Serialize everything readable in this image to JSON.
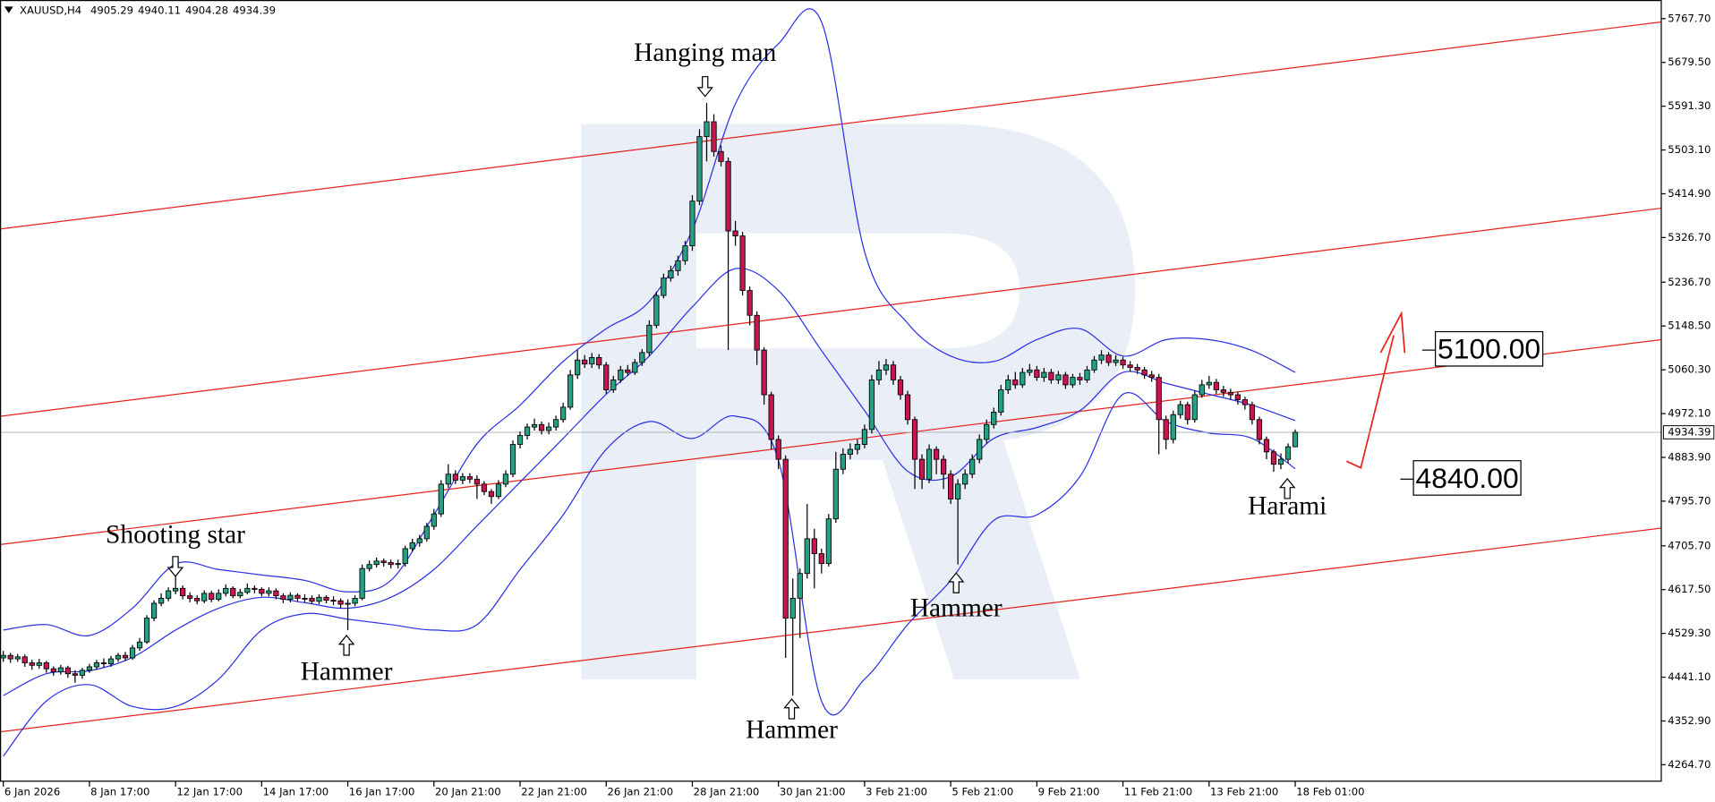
{
  "chart_data": {
    "type": "candlestick",
    "symbol": "XAUUSD,H4",
    "categories": [
      "6 Jan 2026",
      null,
      null,
      null,
      null,
      null,
      null,
      null,
      null,
      null,
      null,
      null,
      "8 Jan 17:00",
      null,
      null,
      null,
      null,
      null,
      null,
      null,
      null,
      null,
      null,
      null,
      "12 Jan 17:00",
      null,
      null,
      null,
      null,
      null,
      null,
      null,
      null,
      null,
      null,
      null,
      "14 Jan 17:00",
      null,
      null,
      null,
      null,
      null,
      null,
      null,
      null,
      null,
      null,
      null,
      "16 Jan 17:00",
      null,
      null,
      null,
      null,
      null,
      null,
      null,
      null,
      null,
      null,
      null,
      "20 Jan 21:00",
      null,
      null,
      null,
      null,
      null,
      null,
      null,
      null,
      null,
      null,
      null,
      "22 Jan 21:00",
      null,
      null,
      null,
      null,
      null,
      null,
      null,
      null,
      null,
      null,
      null,
      "26 Jan 21:00",
      null,
      null,
      null,
      null,
      null,
      null,
      null,
      null,
      null,
      null,
      null,
      "28 Jan 21:00",
      null,
      null,
      null,
      null,
      null,
      null,
      null,
      null,
      null,
      null,
      null,
      "30 Jan 21:00",
      null,
      null,
      null,
      null,
      null,
      null,
      null,
      null,
      null,
      null,
      null,
      "3 Feb 21:00",
      null,
      null,
      null,
      null,
      null,
      null,
      null,
      null,
      null,
      null,
      null,
      "5 Feb 21:00",
      null,
      null,
      null,
      null,
      null,
      null,
      null,
      null,
      null,
      null,
      null,
      "9 Feb 21:00",
      null,
      null,
      null,
      null,
      null,
      null,
      null,
      null,
      null,
      null,
      null,
      "11 Feb 21:00",
      null,
      null,
      null,
      null,
      null,
      null,
      null,
      null,
      null,
      null,
      null,
      "13 Feb 21:00",
      null,
      null,
      null,
      null,
      null,
      null,
      null,
      null,
      null,
      null,
      null,
      "18 Feb 01:00"
    ],
    "open": [
      4480,
      4485,
      4478,
      4482,
      4470,
      4465,
      4470,
      4458,
      4452,
      4460,
      4448,
      4445,
      4455,
      4462,
      4470,
      4468,
      4478,
      4485,
      4480,
      4500,
      4512,
      4560,
      4590,
      4600,
      4615,
      4620,
      4605,
      4600,
      4595,
      4610,
      4598,
      4610,
      4620,
      4605,
      4612,
      4620,
      4618,
      4610,
      4615,
      4605,
      4598,
      4606,
      4600,
      4600,
      4594,
      4602,
      4596,
      4595,
      4588,
      4590,
      4600,
      4660,
      4668,
      4675,
      4672,
      4668,
      4670,
      4700,
      4712,
      4720,
      4745,
      4770,
      4830,
      4850,
      4838,
      4845,
      4840,
      4830,
      4815,
      4805,
      4830,
      4850,
      4910,
      4928,
      4945,
      4950,
      4938,
      4945,
      4960,
      4985,
      5050,
      5080,
      5072,
      5085,
      5070,
      5020,
      5040,
      5060,
      5055,
      5075,
      5095,
      5150,
      5210,
      5245,
      5260,
      5280,
      5310,
      5400,
      5530,
      5560,
      5500,
      5480,
      5340,
      5330,
      5220,
      5170,
      5100,
      5010,
      4920,
      4880,
      4560,
      4600,
      4650,
      4720,
      4690,
      4670,
      4760,
      4860,
      4890,
      4900,
      4910,
      4940,
      5040,
      5060,
      5070,
      5040,
      5010,
      4960,
      4880,
      4840,
      4900,
      4880,
      4850,
      4800,
      4830,
      4850,
      4880,
      4920,
      4950,
      4975,
      5020,
      5040,
      5030,
      5055,
      5060,
      5045,
      5055,
      5040,
      5050,
      5030,
      5045,
      5040,
      5060,
      5080,
      5090,
      5075,
      5080,
      5070,
      5065,
      5060,
      5050,
      5045,
      4960,
      4920,
      4970,
      4990,
      4960,
      5010,
      5030,
      5035,
      5020,
      5015,
      5010,
      5000,
      4990,
      4960,
      4920,
      4895,
      4870,
      4880,
      4905.29
    ],
    "high": [
      4494,
      4490,
      4488,
      4487,
      4476,
      4478,
      4474,
      4463,
      4466,
      4464,
      4455,
      4460,
      4468,
      4476,
      4479,
      4484,
      4490,
      4492,
      4506,
      4520,
      4566,
      4596,
      4610,
      4622,
      4648,
      4626,
      4612,
      4606,
      4616,
      4615,
      4618,
      4628,
      4624,
      4619,
      4630,
      4626,
      4622,
      4622,
      4620,
      4610,
      4612,
      4610,
      4608,
      4606,
      4608,
      4606,
      4604,
      4600,
      4598,
      4606,
      4668,
      4676,
      4682,
      4680,
      4678,
      4678,
      4706,
      4720,
      4728,
      4752,
      4780,
      4838,
      4870,
      4858,
      4852,
      4852,
      4848,
      4836,
      4820,
      4838,
      4858,
      4918,
      4936,
      4952,
      4962,
      4956,
      4954,
      4968,
      4994,
      5060,
      5100,
      5090,
      5094,
      5092,
      5076,
      5048,
      5068,
      5070,
      5082,
      5102,
      5160,
      5218,
      5254,
      5270,
      5290,
      5320,
      5412,
      5545,
      5598,
      5575,
      5512,
      5488,
      5360,
      5338,
      5228,
      5178,
      5106,
      5016,
      4928,
      4888,
      4640,
      4660,
      4790,
      4740,
      4700,
      4770,
      4895,
      4902,
      4912,
      4920,
      4950,
      5050,
      5078,
      5082,
      5078,
      5048,
      5018,
      4966,
      4890,
      4910,
      4906,
      4888,
      4858,
      4840,
      4860,
      4890,
      4930,
      4960,
      4984,
      5030,
      5050,
      5056,
      5064,
      5072,
      5068,
      5064,
      5062,
      5058,
      5056,
      5052,
      5054,
      5068,
      5088,
      5100,
      5096,
      5090,
      5086,
      5078,
      5072,
      5066,
      5058,
      5052,
      4968,
      4978,
      4998,
      4996,
      5018,
      5040,
      5048,
      5042,
      5028,
      5022,
      5016,
      5006,
      4996,
      4966,
      4926,
      4900,
      4892,
      4912,
      4940.11
    ],
    "low": [
      4472,
      4470,
      4472,
      4462,
      4456,
      4458,
      4450,
      4444,
      4446,
      4440,
      4430,
      4438,
      4450,
      4456,
      4461,
      4462,
      4472,
      4474,
      4476,
      4494,
      4508,
      4554,
      4584,
      4594,
      4608,
      4598,
      4592,
      4588,
      4590,
      4592,
      4594,
      4604,
      4600,
      4600,
      4608,
      4610,
      4604,
      4604,
      4598,
      4590,
      4592,
      4594,
      4592,
      4588,
      4588,
      4590,
      4586,
      4580,
      4536,
      4584,
      4596,
      4654,
      4662,
      4664,
      4660,
      4660,
      4664,
      4694,
      4704,
      4714,
      4738,
      4764,
      4822,
      4830,
      4830,
      4832,
      4800,
      4808,
      4790,
      4800,
      4824,
      4844,
      4902,
      4920,
      4938,
      4930,
      4930,
      4938,
      4954,
      4980,
      5042,
      5064,
      5064,
      5062,
      5012,
      5014,
      5034,
      5048,
      5050,
      5068,
      5088,
      5144,
      5204,
      5238,
      5250,
      5272,
      5300,
      5392,
      5480,
      5490,
      5470,
      5100,
      5310,
      5210,
      5150,
      5070,
      4990,
      4900,
      4860,
      4480,
      4404,
      4520,
      4640,
      4620,
      4650,
      4664,
      4752,
      4850,
      4880,
      4890,
      4902,
      4932,
      5030,
      5050,
      5030,
      5000,
      4950,
      4820,
      4820,
      4832,
      4850,
      4820,
      4790,
      4668,
      4820,
      4842,
      4872,
      4912,
      4942,
      4968,
      5012,
      5022,
      5024,
      5048,
      5038,
      5036,
      5032,
      5032,
      5022,
      5024,
      5030,
      5034,
      5054,
      5072,
      5068,
      5068,
      5062,
      5056,
      5052,
      5042,
      5036,
      4890,
      4900,
      4912,
      4962,
      4950,
      4954,
      5004,
      5022,
      5012,
      5006,
      5000,
      4990,
      4980,
      4950,
      4910,
      4880,
      4855,
      4860,
      4872,
      4904.28
    ],
    "close": [
      4485,
      4478,
      4482,
      4470,
      4465,
      4470,
      4458,
      4452,
      4460,
      4448,
      4445,
      4455,
      4462,
      4470,
      4468,
      4478,
      4485,
      4480,
      4500,
      4512,
      4560,
      4590,
      4600,
      4615,
      4620,
      4605,
      4600,
      4595,
      4610,
      4598,
      4610,
      4620,
      4605,
      4612,
      4620,
      4618,
      4610,
      4615,
      4605,
      4598,
      4606,
      4600,
      4600,
      4594,
      4602,
      4596,
      4595,
      4588,
      4590,
      4600,
      4660,
      4668,
      4675,
      4672,
      4668,
      4670,
      4700,
      4712,
      4720,
      4745,
      4770,
      4830,
      4850,
      4838,
      4845,
      4840,
      4830,
      4815,
      4805,
      4830,
      4850,
      4910,
      4928,
      4945,
      4950,
      4938,
      4945,
      4960,
      4985,
      5050,
      5080,
      5072,
      5085,
      5070,
      5020,
      5040,
      5060,
      5055,
      5075,
      5095,
      5150,
      5210,
      5245,
      5260,
      5280,
      5310,
      5400,
      5530,
      5560,
      5500,
      5480,
      5340,
      5330,
      5220,
      5170,
      5100,
      5010,
      4920,
      4880,
      4560,
      4600,
      4650,
      4720,
      4690,
      4670,
      4760,
      4860,
      4890,
      4900,
      4910,
      4940,
      5040,
      5060,
      5070,
      5040,
      5010,
      4960,
      4880,
      4840,
      4900,
      4880,
      4850,
      4800,
      4830,
      4850,
      4880,
      4920,
      4950,
      4975,
      5020,
      5040,
      5030,
      5055,
      5060,
      5045,
      5055,
      5040,
      5050,
      5030,
      5045,
      5040,
      5060,
      5080,
      5090,
      5075,
      5080,
      5070,
      5065,
      5060,
      5050,
      5045,
      4960,
      4920,
      4970,
      4990,
      4960,
      5010,
      5030,
      5035,
      5020,
      5015,
      5010,
      5000,
      4990,
      4960,
      4920,
      4895,
      4870,
      4880,
      4905.29,
      4934.39
    ],
    "up_color": "#26a085",
    "down_color": "#c8154f",
    "bands": {
      "color": "#2a30e6",
      "x": [
        0,
        6,
        12,
        18,
        24,
        30,
        36,
        42,
        48,
        54,
        60,
        66,
        72,
        78,
        84,
        90,
        96,
        102,
        108,
        114,
        120,
        126,
        132,
        138,
        144,
        150,
        156,
        162,
        168,
        174,
        180
      ],
      "upper": [
        4536,
        4547,
        4525,
        4580,
        4669,
        4658,
        4647,
        4636,
        4613,
        4636,
        4768,
        4911,
        4989,
        5077,
        5143,
        5198,
        5342,
        5596,
        5717,
        5761,
        5298,
        5154,
        5088,
        5077,
        5121,
        5143,
        5088,
        5121,
        5121,
        5099,
        5055
      ],
      "middle": [
        4404,
        4448,
        4454,
        4481,
        4536,
        4580,
        4602,
        4591,
        4580,
        4602,
        4658,
        4746,
        4834,
        4922,
        5011,
        5088,
        5187,
        5264,
        5220,
        5099,
        4978,
        4856,
        4845,
        4922,
        4944,
        4978,
        5055,
        5033,
        5011,
        4989,
        4958
      ],
      "lower": [
        4282,
        4393,
        4426,
        4382,
        4382,
        4437,
        4536,
        4569,
        4558,
        4547,
        4536,
        4547,
        4658,
        4768,
        4900,
        4956,
        4922,
        4967,
        4878,
        4393,
        4437,
        4547,
        4636,
        4757,
        4768,
        4845,
        5011,
        4956,
        4933,
        4922,
        4861
      ]
    },
    "channel_color": "#e8221b",
    "channel": [
      {
        "values": [
          5343.9,
          5761.1
        ]
      },
      {
        "values": [
          4966.5,
          5385.9
        ]
      },
      {
        "values": [
          4708.3,
          5121.0
        ]
      },
      {
        "values": [
          4330.9,
          4741.4
        ]
      }
    ],
    "levels": [
      {
        "value": 5100,
        "label": "5100.00"
      },
      {
        "value": 4840,
        "label": "4840.00"
      }
    ],
    "annotations": [
      "Hanging man",
      "Shooting star",
      "Hammer",
      "Hammer",
      "Hammer",
      "Harami"
    ],
    "xlim": [
      -0.46,
      231
    ],
    "ylim": [
      4231.6,
      5805.2
    ],
    "yticks": [
      {
        "value": 5767.7,
        "label": "5767.70"
      },
      {
        "value": 5679.5,
        "label": "5679.50"
      },
      {
        "value": 5591.3,
        "label": "5591.30"
      },
      {
        "value": 5503.1,
        "label": "5503.10"
      },
      {
        "value": 5414.9,
        "label": "5414.90"
      },
      {
        "value": 5326.7,
        "label": "5326.70"
      },
      {
        "value": 5236.7,
        "label": "5236.70"
      },
      {
        "value": 5148.5,
        "label": "5148.50"
      },
      {
        "value": 5060.3,
        "label": "5060.30"
      },
      {
        "value": 4972.1,
        "label": "4972.10"
      },
      {
        "value": 4883.9,
        "label": "4883.90"
      },
      {
        "value": 4795.7,
        "label": "4795.70"
      },
      {
        "value": 4705.7,
        "label": "4705.70"
      },
      {
        "value": 4617.5,
        "label": "4617.50"
      },
      {
        "value": 4529.3,
        "label": "4529.30"
      },
      {
        "value": 4441.1,
        "label": "4441.10"
      },
      {
        "value": 4352.9,
        "label": "4352.90"
      },
      {
        "value": 4264.7,
        "label": "4264.70"
      }
    ],
    "grid": false
  }
}
